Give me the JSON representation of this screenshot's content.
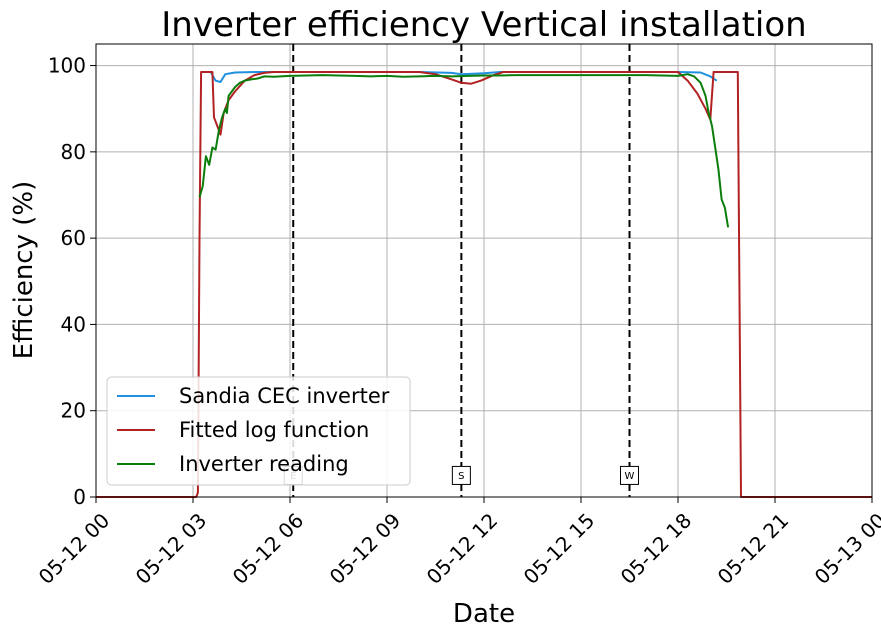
{
  "chart_data": {
    "type": "line",
    "title": "Inverter efficiency Vertical installation",
    "xlabel": "Date",
    "ylabel": "Efficiency (%)",
    "xlim": [
      "05-12 00:00",
      "05-13 00:00"
    ],
    "ylim": [
      0,
      105
    ],
    "grid": true,
    "legend_position": "lower-left",
    "x_ticks": [
      {
        "label": "05-12 00",
        "hour": 0
      },
      {
        "label": "05-12 03",
        "hour": 3
      },
      {
        "label": "05-12 06",
        "hour": 6
      },
      {
        "label": "05-12 09",
        "hour": 9
      },
      {
        "label": "05-12 12",
        "hour": 12
      },
      {
        "label": "05-12 15",
        "hour": 15
      },
      {
        "label": "05-12 18",
        "hour": 18
      },
      {
        "label": "05-12 21",
        "hour": 21
      },
      {
        "label": "05-13 00",
        "hour": 24
      }
    ],
    "y_ticks": [
      0,
      20,
      40,
      60,
      80,
      100
    ],
    "vlines": [
      {
        "label": "E",
        "hour": 6.1
      },
      {
        "label": "S",
        "hour": 11.3
      },
      {
        "label": "W",
        "hour": 16.5
      }
    ],
    "series": [
      {
        "name": "Sandia CEC inverter",
        "color": "#1f8fe0",
        "points": [
          [
            3.25,
            98.5
          ],
          [
            3.55,
            98.5
          ],
          [
            3.7,
            96.5
          ],
          [
            3.85,
            96.2
          ],
          [
            4.0,
            98.0
          ],
          [
            4.3,
            98.4
          ],
          [
            5.0,
            98.5
          ],
          [
            10.0,
            98.5
          ],
          [
            11.0,
            98.3
          ],
          [
            11.3,
            98.0
          ],
          [
            12.0,
            98.2
          ],
          [
            12.5,
            98.5
          ],
          [
            18.0,
            98.5
          ],
          [
            18.7,
            98.4
          ],
          [
            19.0,
            97.5
          ],
          [
            19.2,
            96.5
          ]
        ]
      },
      {
        "name": "Fitted log function",
        "color": "#b22222",
        "points": [
          [
            0,
            0
          ],
          [
            3.1,
            0
          ],
          [
            3.15,
            1
          ],
          [
            3.2,
            60
          ],
          [
            3.25,
            98.5
          ],
          [
            3.55,
            98.5
          ],
          [
            3.6,
            98.5
          ],
          [
            3.65,
            88
          ],
          [
            3.75,
            86
          ],
          [
            3.85,
            84
          ],
          [
            3.95,
            89
          ],
          [
            4.1,
            92
          ],
          [
            4.3,
            94
          ],
          [
            4.6,
            96.5
          ],
          [
            4.9,
            97.8
          ],
          [
            5.2,
            98.3
          ],
          [
            5.5,
            98.5
          ],
          [
            10.0,
            98.5
          ],
          [
            10.5,
            98.0
          ],
          [
            11.0,
            96.8
          ],
          [
            11.3,
            96.0
          ],
          [
            11.6,
            95.8
          ],
          [
            11.9,
            96.5
          ],
          [
            12.3,
            97.8
          ],
          [
            12.6,
            98.5
          ],
          [
            18.0,
            98.5
          ],
          [
            18.3,
            96.5
          ],
          [
            18.6,
            93.5
          ],
          [
            18.85,
            90
          ],
          [
            19.0,
            87.5
          ],
          [
            19.1,
            98.5
          ],
          [
            19.85,
            98.5
          ],
          [
            19.95,
            0
          ],
          [
            24,
            0
          ]
        ]
      },
      {
        "name": "Inverter reading",
        "color": "#0a7d0a",
        "points": [
          [
            3.2,
            69.5
          ],
          [
            3.3,
            72
          ],
          [
            3.4,
            79
          ],
          [
            3.5,
            77
          ],
          [
            3.6,
            81
          ],
          [
            3.7,
            80.5
          ],
          [
            3.8,
            85
          ],
          [
            3.9,
            88
          ],
          [
            4.0,
            90
          ],
          [
            4.05,
            89
          ],
          [
            4.1,
            93
          ],
          [
            4.2,
            94
          ],
          [
            4.3,
            95
          ],
          [
            4.45,
            96
          ],
          [
            4.6,
            96.5
          ],
          [
            4.8,
            96.8
          ],
          [
            5.0,
            97
          ],
          [
            5.2,
            97.5
          ],
          [
            5.5,
            97.4
          ],
          [
            6.0,
            97.6
          ],
          [
            6.5,
            97.7
          ],
          [
            7.0,
            97.8
          ],
          [
            7.5,
            97.7
          ],
          [
            8.0,
            97.6
          ],
          [
            8.5,
            97.5
          ],
          [
            9.0,
            97.6
          ],
          [
            9.5,
            97.4
          ],
          [
            10.0,
            97.5
          ],
          [
            10.5,
            97.6
          ],
          [
            11.0,
            97.5
          ],
          [
            11.5,
            97.6
          ],
          [
            12.0,
            97.7
          ],
          [
            12.5,
            97.7
          ],
          [
            13.0,
            97.8
          ],
          [
            14.0,
            97.8
          ],
          [
            15.0,
            97.8
          ],
          [
            16.0,
            97.8
          ],
          [
            17.0,
            97.8
          ],
          [
            17.5,
            97.7
          ],
          [
            18.0,
            97.6
          ],
          [
            18.3,
            98
          ],
          [
            18.5,
            97.5
          ],
          [
            18.7,
            96
          ],
          [
            18.85,
            93
          ],
          [
            18.95,
            89
          ],
          [
            19.05,
            86
          ],
          [
            19.15,
            81
          ],
          [
            19.25,
            76
          ],
          [
            19.35,
            69
          ],
          [
            19.45,
            67
          ],
          [
            19.55,
            62.5
          ]
        ]
      }
    ]
  }
}
